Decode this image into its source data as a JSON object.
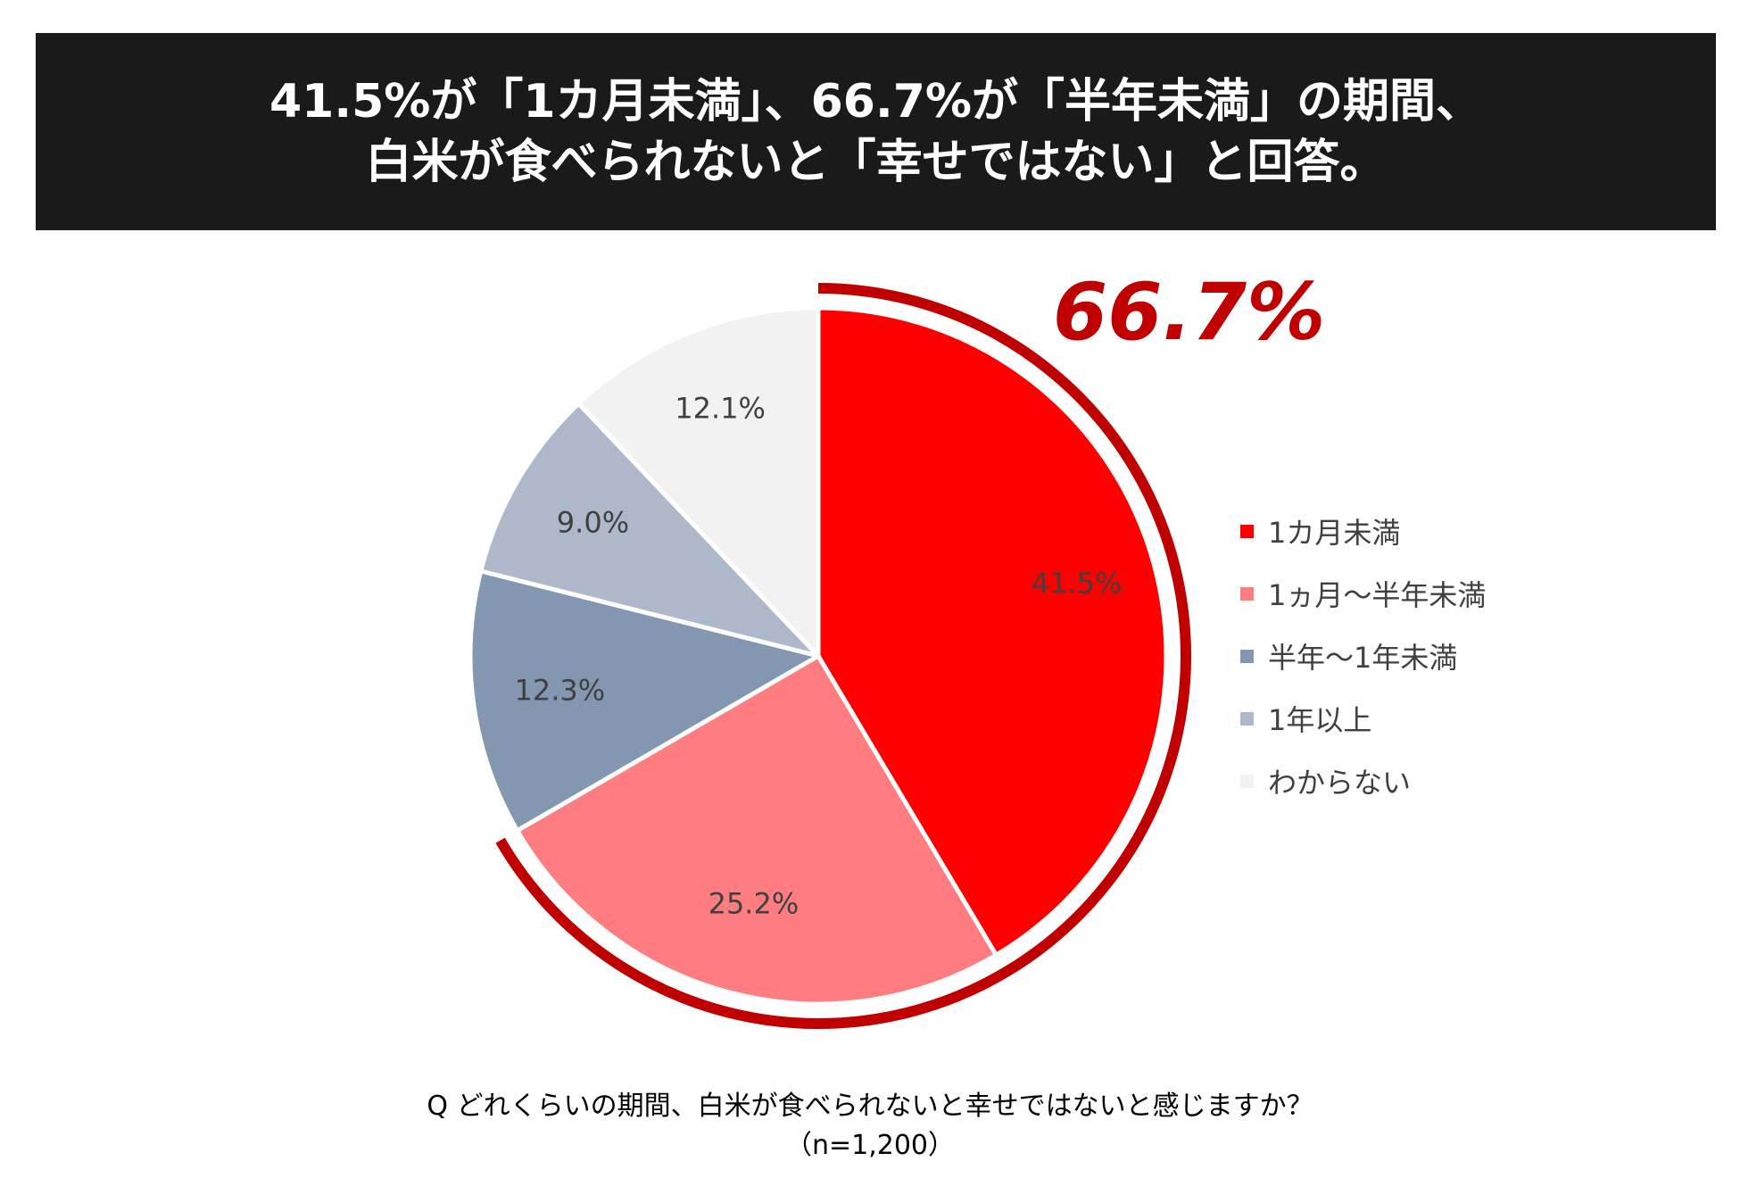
{
  "headline": {
    "line1": "41.5%が「1カ月未満」、66.7%が「半年未満」の期間、",
    "line2": "白米が食べられないと「幸せではない」と回答。"
  },
  "callout": {
    "value": "66.7%",
    "color": "#c00000"
  },
  "chart_data": {
    "type": "pie",
    "categories": [
      "1カ月未満",
      "1ヵ月～半年未満",
      "半年～1年未満",
      "1年以上",
      "わからない"
    ],
    "values": [
      41.5,
      25.2,
      12.3,
      9.0,
      12.1
    ],
    "labels": [
      "41.5%",
      "25.2%",
      "12.3%",
      "9.0%",
      "12.1%"
    ],
    "colors": [
      "#ff0000",
      "#ff7c80",
      "#8497b0",
      "#adb9ca",
      "#f2f2f2"
    ],
    "legend_position": "right",
    "start": "12 o'clock",
    "direction": "clockwise",
    "highlight_ring": {
      "categories": [
        "1カ月未満",
        "1ヵ月～半年未満"
      ],
      "total_label": "66.7%",
      "color": "#c00000"
    }
  },
  "footer": {
    "question": "Q どれくらいの期間、白米が食べられないと幸せではないと感じますか？",
    "sample": "（n=1,200）"
  }
}
